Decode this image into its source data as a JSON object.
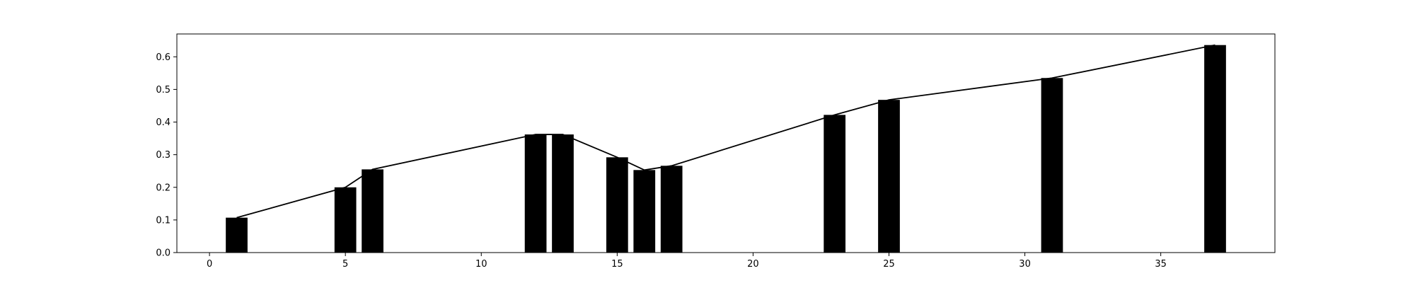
{
  "chart_data": {
    "type": "bar",
    "title": "",
    "xlabel": "",
    "ylabel": "",
    "xlim": [
      -1.2,
      39.2
    ],
    "ylim": [
      0,
      0.67
    ],
    "grid": false,
    "legend": null,
    "colors": {
      "bar": "#000000",
      "line": "#000000",
      "axis": "#000000",
      "background": "#ffffff"
    },
    "x_ticks": [
      0,
      5,
      10,
      15,
      20,
      25,
      30,
      35
    ],
    "x_tick_labels": [
      "0",
      "5",
      "10",
      "15",
      "20",
      "25",
      "30",
      "35"
    ],
    "y_ticks": [
      0.0,
      0.1,
      0.2,
      0.3,
      0.4,
      0.5,
      0.6
    ],
    "y_tick_labels": [
      "0.0",
      "0.1",
      "0.2",
      "0.3",
      "0.4",
      "0.5",
      "0.6"
    ],
    "bar_width": 0.8,
    "x": [
      1,
      5,
      6,
      12,
      13,
      15,
      16,
      17,
      23,
      25,
      31,
      37
    ],
    "values": [
      0.107,
      0.2,
      0.255,
      0.362,
      0.362,
      0.292,
      0.253,
      0.266,
      0.422,
      0.468,
      0.535,
      0.636
    ],
    "overlay_line": {
      "type": "line",
      "x": [
        1,
        5,
        6,
        12,
        13,
        15,
        16,
        17,
        23,
        25,
        31,
        37
      ],
      "values": [
        0.107,
        0.2,
        0.255,
        0.362,
        0.362,
        0.292,
        0.253,
        0.266,
        0.422,
        0.468,
        0.535,
        0.636
      ]
    }
  }
}
